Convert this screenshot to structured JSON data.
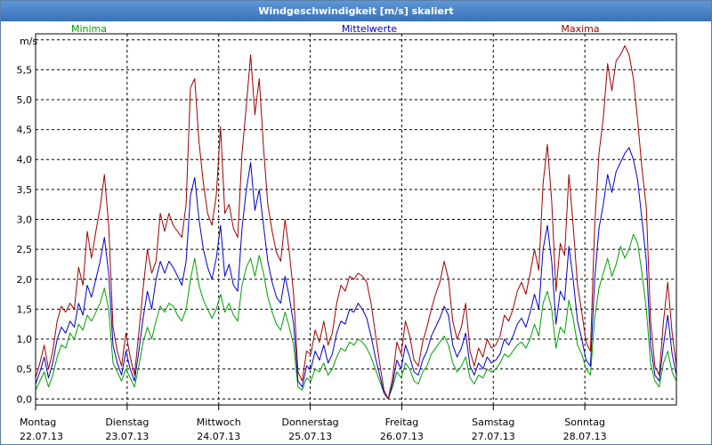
{
  "chart_data": {
    "type": "line",
    "title": "Windgeschwindigkeit [m/s] skaliert",
    "ylabel": "m/s",
    "ylim": [
      -0.1,
      6.1
    ],
    "yticks": [
      "0,0",
      "0,5",
      "1,0",
      "1,5",
      "2,0",
      "2,5",
      "3,0",
      "3,5",
      "4,0",
      "4,5",
      "5,0",
      "5,5"
    ],
    "yticks_values": [
      0,
      0.5,
      1,
      1.5,
      2,
      2.5,
      3,
      3.5,
      4,
      4.5,
      5,
      5.5
    ],
    "day_labels": [
      {
        "day": "Montag",
        "date": "22.07.13"
      },
      {
        "day": "Dienstag",
        "date": "23.07.13"
      },
      {
        "day": "Mittwoch",
        "date": "24.07.13"
      },
      {
        "day": "Donnerstag",
        "date": "25.07.13"
      },
      {
        "day": "Freitag",
        "date": "26.07.13"
      },
      {
        "day": "Samstag",
        "date": "27.07.13"
      },
      {
        "day": "Sonntag",
        "date": "28.07.13"
      }
    ],
    "xlim": [
      0,
      7
    ],
    "grid": true,
    "legend_placement": "top",
    "series": [
      {
        "name": "Minima",
        "color": "#00a000",
        "values": [
          0.15,
          0.3,
          0.45,
          0.2,
          0.4,
          0.7,
          0.9,
          0.85,
          1.1,
          1.0,
          1.25,
          1.15,
          1.4,
          1.3,
          1.45,
          1.6,
          1.85,
          1.5,
          0.6,
          0.45,
          0.3,
          0.5,
          0.35,
          0.2,
          0.55,
          0.95,
          1.2,
          1.0,
          1.3,
          1.55,
          1.45,
          1.6,
          1.55,
          1.4,
          1.3,
          1.5,
          2.0,
          2.35,
          1.9,
          1.65,
          1.5,
          1.35,
          1.5,
          1.75,
          1.45,
          1.6,
          1.4,
          1.3,
          1.9,
          2.2,
          2.35,
          2.05,
          2.4,
          2.1,
          1.7,
          1.45,
          1.25,
          1.15,
          1.45,
          1.2,
          0.9,
          0.2,
          0.15,
          0.35,
          0.3,
          0.5,
          0.45,
          0.6,
          0.4,
          0.5,
          0.7,
          0.85,
          0.8,
          0.95,
          0.9,
          1.0,
          0.95,
          0.85,
          0.7,
          0.5,
          0.3,
          0.1,
          0.0,
          0.2,
          0.45,
          0.35,
          0.6,
          0.5,
          0.3,
          0.25,
          0.45,
          0.55,
          0.75,
          0.85,
          0.95,
          1.05,
          0.9,
          0.6,
          0.45,
          0.55,
          0.7,
          0.35,
          0.25,
          0.4,
          0.35,
          0.5,
          0.45,
          0.5,
          0.6,
          0.75,
          0.7,
          0.8,
          0.9,
          0.95,
          0.85,
          1.0,
          1.25,
          1.05,
          1.6,
          1.8,
          1.5,
          0.85,
          1.2,
          1.1,
          1.65,
          1.35,
          0.9,
          0.75,
          0.5,
          0.4,
          1.35,
          1.85,
          2.1,
          2.35,
          2.05,
          2.25,
          2.55,
          2.35,
          2.5,
          2.75,
          2.6,
          2.1,
          1.5,
          0.6,
          0.3,
          0.2,
          0.6,
          0.8,
          0.45,
          0.3
        ]
      },
      {
        "name": "Mittelwerte",
        "color": "#0000c8",
        "values": [
          0.25,
          0.45,
          0.7,
          0.35,
          0.6,
          1.0,
          1.2,
          1.1,
          1.3,
          1.2,
          1.6,
          1.4,
          1.9,
          1.7,
          2.0,
          2.3,
          2.7,
          2.1,
          0.9,
          0.6,
          0.4,
          0.8,
          0.5,
          0.3,
          0.8,
          1.35,
          1.8,
          1.5,
          2.0,
          2.3,
          2.1,
          2.3,
          2.2,
          2.05,
          1.9,
          2.3,
          3.4,
          3.7,
          3.0,
          2.5,
          2.2,
          2.0,
          2.35,
          2.9,
          2.05,
          2.25,
          1.9,
          1.8,
          2.85,
          3.5,
          3.95,
          3.15,
          3.5,
          2.9,
          2.3,
          1.95,
          1.7,
          1.6,
          2.05,
          1.7,
          1.25,
          0.3,
          0.2,
          0.55,
          0.5,
          0.8,
          0.65,
          0.9,
          0.6,
          0.75,
          1.1,
          1.3,
          1.25,
          1.5,
          1.45,
          1.6,
          1.5,
          1.35,
          1.05,
          0.7,
          0.4,
          0.1,
          0.0,
          0.25,
          0.65,
          0.5,
          0.9,
          0.7,
          0.45,
          0.4,
          0.65,
          0.8,
          1.05,
          1.2,
          1.35,
          1.55,
          1.4,
          0.9,
          0.7,
          0.85,
          1.1,
          0.55,
          0.4,
          0.6,
          0.5,
          0.7,
          0.6,
          0.65,
          0.75,
          1.0,
          0.9,
          1.05,
          1.25,
          1.35,
          1.2,
          1.45,
          1.75,
          1.5,
          2.5,
          2.9,
          2.3,
          1.25,
          1.8,
          1.65,
          2.55,
          2.0,
          1.3,
          1.0,
          0.65,
          0.55,
          2.0,
          2.85,
          3.25,
          3.75,
          3.45,
          3.8,
          3.95,
          4.1,
          4.2,
          4.0,
          3.65,
          3.0,
          2.3,
          0.9,
          0.4,
          0.3,
          0.9,
          1.4,
          0.75,
          0.4
        ]
      },
      {
        "name": "Maxima",
        "color": "#a00000",
        "values": [
          0.35,
          0.6,
          0.9,
          0.5,
          0.8,
          1.3,
          1.55,
          1.45,
          1.6,
          1.5,
          2.2,
          1.9,
          2.8,
          2.35,
          2.8,
          3.2,
          3.75,
          2.9,
          1.2,
          0.8,
          0.55,
          1.1,
          0.7,
          0.4,
          1.1,
          1.85,
          2.5,
          2.1,
          2.3,
          3.1,
          2.8,
          3.1,
          2.9,
          2.8,
          2.7,
          3.25,
          5.2,
          5.35,
          4.3,
          3.6,
          3.1,
          2.9,
          3.4,
          4.55,
          3.1,
          3.25,
          2.85,
          2.7,
          4.1,
          4.9,
          5.75,
          4.75,
          5.35,
          4.2,
          3.25,
          2.8,
          2.45,
          2.3,
          3.0,
          2.45,
          1.75,
          0.45,
          0.3,
          0.8,
          0.75,
          1.15,
          0.95,
          1.3,
          0.9,
          1.1,
          1.6,
          1.9,
          1.8,
          2.05,
          2.0,
          2.1,
          2.05,
          1.95,
          1.6,
          1.1,
          0.6,
          0.15,
          0.0,
          0.35,
          0.95,
          0.75,
          1.3,
          1.05,
          0.65,
          0.55,
          0.95,
          1.2,
          1.5,
          1.75,
          1.95,
          2.3,
          2.0,
          1.3,
          1.0,
          1.2,
          1.6,
          0.8,
          0.55,
          0.85,
          0.7,
          1.0,
          0.85,
          0.9,
          1.05,
          1.4,
          1.3,
          1.5,
          1.8,
          1.95,
          1.75,
          2.1,
          2.5,
          2.15,
          3.6,
          4.25,
          3.3,
          1.8,
          2.6,
          2.4,
          3.75,
          2.9,
          1.9,
          1.45,
          0.95,
          0.8,
          2.9,
          4.1,
          4.7,
          5.6,
          5.15,
          5.65,
          5.75,
          5.9,
          5.75,
          5.35,
          4.65,
          3.85,
          3.2,
          1.3,
          0.55,
          0.4,
          1.3,
          1.95,
          1.1,
          0.55
        ]
      }
    ]
  }
}
